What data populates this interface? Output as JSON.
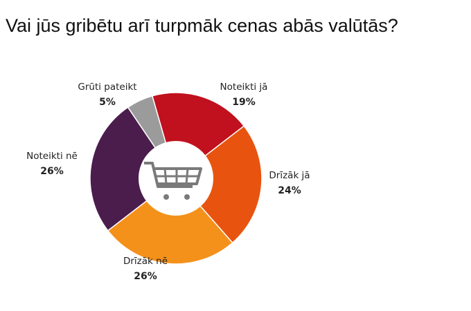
{
  "chart_data": {
    "type": "donut",
    "title": "Vai jūs gribētu arī turpmāk cenas abās valūtās?",
    "categories": [
      "Noteikti jā",
      "Drīzāk jā",
      "Drīzāk nē",
      "Noteikti nē",
      "Grūti pateikt"
    ],
    "values": [
      19,
      24,
      26,
      26,
      5
    ],
    "value_labels": [
      "19%",
      "24%",
      "26%",
      "26%",
      "5%"
    ],
    "colors": [
      "#c1111e",
      "#e8540f",
      "#f4911a",
      "#4b1d4d",
      "#9b9b9b"
    ]
  }
}
